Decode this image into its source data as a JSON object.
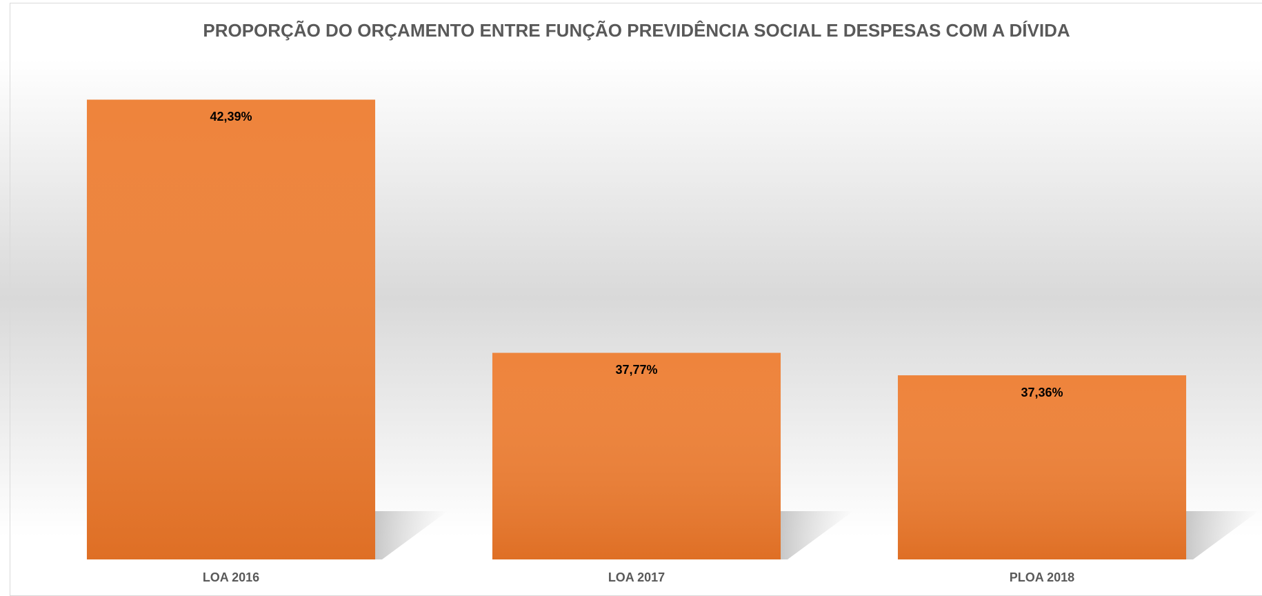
{
  "chart_data": {
    "type": "bar",
    "title": "PROPORÇÃO DO ORÇAMENTO ENTRE FUNÇÃO PREVIDÊNCIA SOCIAL E  DESPESAS COM A DÍVIDA",
    "categories": [
      "LOA 2016",
      "LOA 2017",
      "PLOA 2018"
    ],
    "values": [
      42.39,
      37.77,
      37.36
    ],
    "value_labels": [
      "42,39%",
      "37,77%",
      "37,36%"
    ],
    "color": "#ed7d31",
    "ylim": [
      34,
      43
    ]
  }
}
